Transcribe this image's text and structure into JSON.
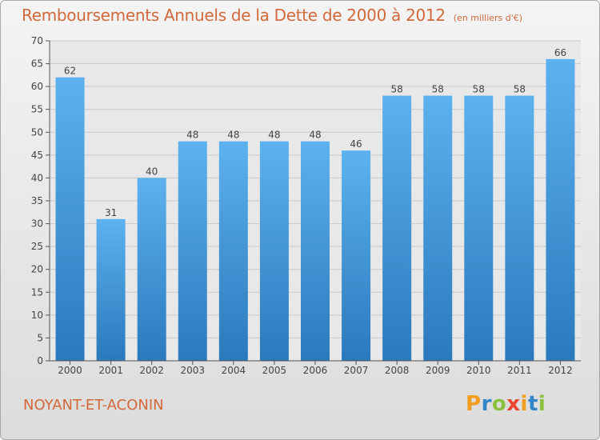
{
  "chart_data": {
    "type": "bar",
    "title": "Remboursements Annuels de la Dette de 2000 à 2012",
    "unit_note": "(en milliers d'€)",
    "categories": [
      "2000",
      "2001",
      "2002",
      "2003",
      "2004",
      "2005",
      "2006",
      "2007",
      "2008",
      "2009",
      "2010",
      "2011",
      "2012"
    ],
    "values": [
      62,
      31,
      40,
      48,
      48,
      48,
      48,
      46,
      58,
      58,
      58,
      58,
      66
    ],
    "ylim": [
      0,
      70
    ],
    "yticks": [
      0,
      5,
      10,
      15,
      20,
      25,
      30,
      35,
      40,
      45,
      50,
      55,
      60,
      65,
      70
    ],
    "grid": true,
    "bar_color": "#3a93d8"
  },
  "commune": "NOYANT-ET-ACONIN",
  "logo": {
    "text": "Proxiti",
    "letters": [
      {
        "ch": "P",
        "color": "#f29e1f"
      },
      {
        "ch": "r",
        "color": "#2f86c9"
      },
      {
        "ch": "o",
        "color": "#8cc13f"
      },
      {
        "ch": "x",
        "color": "#e8442e"
      },
      {
        "ch": "i",
        "color": "#f29e1f"
      },
      {
        "ch": "t",
        "color": "#2f86c9"
      },
      {
        "ch": "i",
        "color": "#8cc13f"
      }
    ]
  },
  "colors": {
    "title": "#d2693a",
    "axis": "#555555",
    "grid": "#c8c8c8",
    "plot_bg": "#e8e8e8"
  }
}
